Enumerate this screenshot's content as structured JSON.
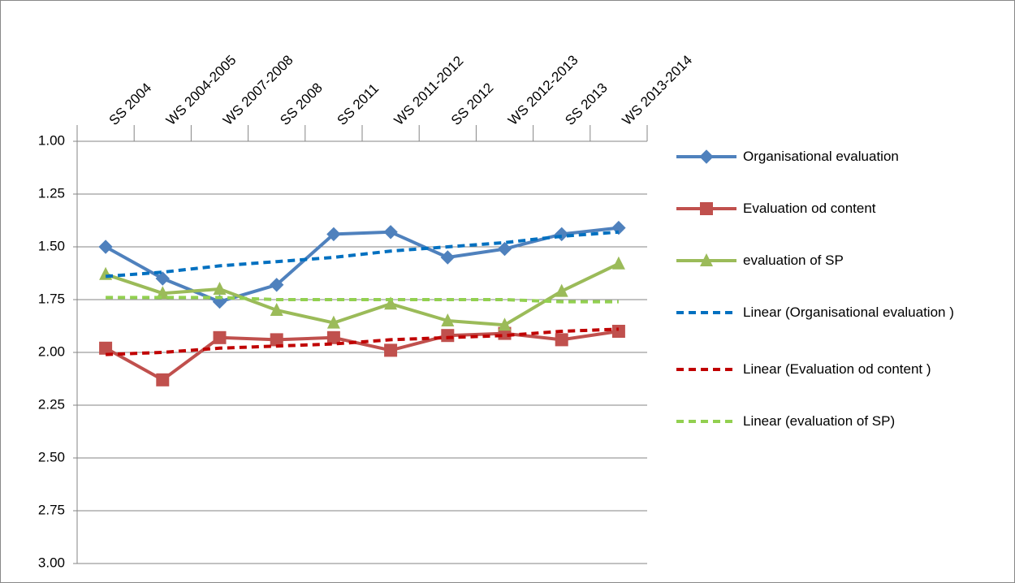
{
  "chart_data": {
    "type": "line",
    "categories": [
      "SS 2004",
      "WS 2004-2005",
      "WS 2007-2008",
      "SS 2008",
      "SS 2011",
      "WS 2011-2012",
      "SS 2012",
      "WS 2012-2013",
      "SS 2013",
      "WS 2013-2014"
    ],
    "ylim": [
      1,
      3
    ],
    "y_reversed": true,
    "yticks": [
      {
        "value": 1,
        "label": "1.00"
      },
      {
        "value": 1.25,
        "label": "1.25"
      },
      {
        "value": 1.5,
        "label": "1.50"
      },
      {
        "value": 1.75,
        "label": "1.75"
      },
      {
        "value": 2,
        "label": "2.00"
      },
      {
        "value": 2.25,
        "label": "2.25"
      },
      {
        "value": 2.5,
        "label": "2.50"
      },
      {
        "value": 2.75,
        "label": "2.75"
      },
      {
        "value": 3,
        "label": "3.00"
      }
    ],
    "grid": true,
    "legend": "right",
    "series": [
      {
        "name": "Organisational evaluation",
        "color": "#4f81bd",
        "marker": "diamond",
        "line_style": "solid",
        "values": [
          1.5,
          1.65,
          1.76,
          1.68,
          1.44,
          1.43,
          1.55,
          1.51,
          1.44,
          1.41
        ]
      },
      {
        "name": "Evaluation od content",
        "color": "#c0504d",
        "marker": "square",
        "line_style": "solid",
        "values": [
          1.98,
          2.13,
          1.93,
          1.94,
          1.93,
          1.99,
          1.92,
          1.91,
          1.94,
          1.9
        ]
      },
      {
        "name": "evaluation of SP",
        "color": "#9bbb59",
        "marker": "triangle",
        "line_style": "solid",
        "values": [
          1.63,
          1.72,
          1.7,
          1.8,
          1.86,
          1.77,
          1.85,
          1.87,
          1.71,
          1.58
        ]
      },
      {
        "name": "Linear (Organisational evaluation )",
        "color": "#0070c0",
        "marker": "none",
        "line_style": "dashed",
        "values": [
          1.64,
          1.62,
          1.59,
          1.57,
          1.55,
          1.52,
          1.5,
          1.48,
          1.45,
          1.43
        ]
      },
      {
        "name": "Linear (Evaluation od content )",
        "color": "#c00000",
        "marker": "none",
        "line_style": "dashed",
        "values": [
          2.01,
          2.0,
          1.98,
          1.97,
          1.96,
          1.94,
          1.93,
          1.92,
          1.9,
          1.89
        ]
      },
      {
        "name": "Linear (evaluation of SP)",
        "color": "#92d050",
        "marker": "none",
        "line_style": "dashed",
        "values": [
          1.74,
          1.74,
          1.74,
          1.75,
          1.75,
          1.75,
          1.75,
          1.75,
          1.76,
          1.76
        ]
      }
    ]
  }
}
